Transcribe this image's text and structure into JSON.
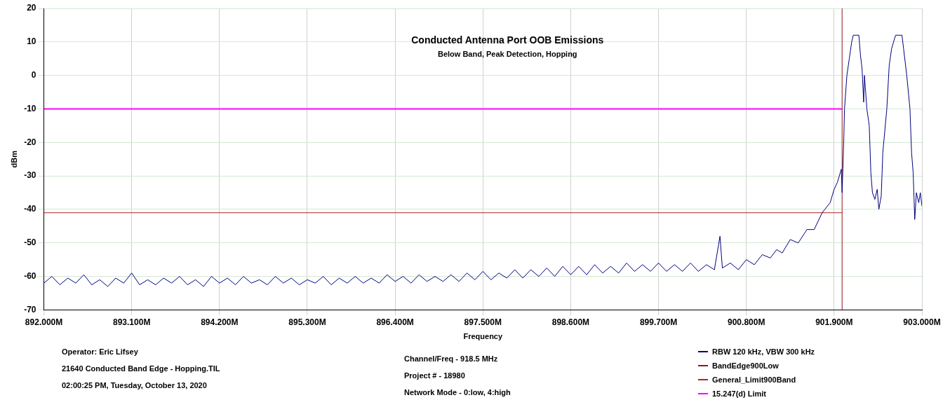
{
  "chart_data": {
    "type": "line",
    "title": "Conducted Antenna Port OOB Emissions",
    "subtitle": "Below Band, Peak Detection, Hopping",
    "xlabel": "Frequency",
    "ylabel": "dBm",
    "xlim": [
      892.0,
      903.0
    ],
    "xticks": [
      {
        "value": 892.0,
        "label": "892.000M"
      },
      {
        "value": 893.1,
        "label": "893.100M"
      },
      {
        "value": 894.2,
        "label": "894.200M"
      },
      {
        "value": 895.3,
        "label": "895.300M"
      },
      {
        "value": 896.4,
        "label": "896.400M"
      },
      {
        "value": 897.5,
        "label": "897.500M"
      },
      {
        "value": 898.6,
        "label": "898.600M"
      },
      {
        "value": 899.7,
        "label": "899.700M"
      },
      {
        "value": 900.8,
        "label": "900.800M"
      },
      {
        "value": 901.9,
        "label": "901.900M"
      },
      {
        "value": 903.0,
        "label": "903.000M"
      }
    ],
    "ylim": [
      -70,
      20
    ],
    "yticks": [
      -70,
      -60,
      -50,
      -40,
      -30,
      -20,
      -10,
      0,
      10,
      20
    ],
    "grid": true,
    "legend": "bottom right",
    "marker": "none",
    "line_style": "solid",
    "series": [
      {
        "name": "RBW 120 kHz, VBW 300 kHz",
        "color": "#000080",
        "x": [
          892.0,
          892.1,
          892.2,
          892.3,
          892.4,
          892.5,
          892.6,
          892.7,
          892.8,
          892.9,
          893.0,
          893.1,
          893.2,
          893.3,
          893.4,
          893.5,
          893.6,
          893.7,
          893.8,
          893.9,
          894.0,
          894.1,
          894.2,
          894.3,
          894.4,
          894.5,
          894.6,
          894.7,
          894.8,
          894.9,
          895.0,
          895.1,
          895.2,
          895.3,
          895.4,
          895.5,
          895.6,
          895.7,
          895.8,
          895.9,
          896.0,
          896.1,
          896.2,
          896.3,
          896.4,
          896.5,
          896.6,
          896.7,
          896.8,
          896.9,
          897.0,
          897.1,
          897.2,
          897.3,
          897.4,
          897.5,
          897.6,
          897.7,
          897.8,
          897.9,
          898.0,
          898.1,
          898.2,
          898.3,
          898.4,
          898.5,
          898.6,
          898.7,
          898.8,
          898.9,
          899.0,
          899.1,
          899.2,
          899.3,
          899.4,
          899.5,
          899.6,
          899.7,
          899.8,
          899.9,
          900.0,
          900.1,
          900.2,
          900.3,
          900.4,
          900.47,
          900.5,
          900.6,
          900.7,
          900.8,
          900.9,
          901.0,
          901.1,
          901.18,
          901.25,
          901.35,
          901.45,
          901.56,
          901.65,
          901.75,
          901.85,
          901.9,
          901.94,
          901.99,
          902.0,
          902.02,
          902.03,
          902.06,
          902.09,
          902.12,
          902.14,
          902.21,
          902.23,
          902.25,
          902.27,
          902.28,
          902.31,
          902.34,
          902.36,
          902.38,
          902.41,
          902.44,
          902.46,
          902.49,
          902.51,
          902.56,
          902.59,
          902.62,
          902.67,
          902.75,
          902.77,
          902.81,
          902.85,
          902.87,
          902.89,
          902.91,
          902.93,
          902.96,
          902.98,
          903.0
        ],
        "values": [
          -62,
          -60,
          -62.5,
          -60.5,
          -62,
          -59.5,
          -62.5,
          -61,
          -63,
          -60.5,
          -62,
          -59,
          -62.5,
          -61,
          -62.5,
          -60.5,
          -62,
          -60,
          -62.5,
          -61,
          -63,
          -60,
          -62,
          -60.5,
          -62.5,
          -60,
          -62,
          -61,
          -62.5,
          -60,
          -62,
          -60.5,
          -62.5,
          -61,
          -62,
          -60,
          -62.5,
          -60.5,
          -62,
          -60,
          -62,
          -60.5,
          -62,
          -59.5,
          -61.5,
          -60,
          -62,
          -59.5,
          -61.5,
          -60,
          -61.5,
          -59.5,
          -61.5,
          -59,
          -61,
          -58.5,
          -61,
          -59,
          -60.5,
          -58,
          -60.5,
          -58,
          -60,
          -57.5,
          -60,
          -57,
          -59.5,
          -57,
          -59.5,
          -56.5,
          -59,
          -57,
          -59,
          -56,
          -58.5,
          -56.5,
          -58.5,
          -56,
          -58.5,
          -56.5,
          -58.5,
          -56,
          -58.5,
          -56.5,
          -58,
          -48,
          -57.5,
          -56,
          -58,
          -55,
          -56.5,
          -53.5,
          -54.5,
          -52,
          -53,
          -49,
          -50,
          -46,
          -46,
          -41,
          -38,
          -34,
          -32,
          -28,
          -35,
          -20,
          -10,
          0,
          5,
          10,
          12,
          12,
          6,
          2,
          -8,
          0,
          -10,
          -15,
          -29,
          -35,
          -37,
          -34,
          -40,
          -36,
          -23,
          -10,
          3,
          8,
          12,
          12,
          8,
          0,
          -10,
          -23,
          -29,
          -43,
          -35,
          -38,
          -35,
          -39
        ]
      },
      {
        "name": "BandEdge900Low",
        "color": "#8b1a1a",
        "x": [
          902.0,
          902.0
        ],
        "values": [
          -70,
          20
        ]
      },
      {
        "name": "General_Limit900Band",
        "color": "#b22222",
        "x": [
          892.0,
          902.0
        ],
        "values": [
          -41,
          -41
        ]
      },
      {
        "name": "15.247(d) Limit",
        "color": "#ff00ff",
        "x": [
          892.0,
          902.0
        ],
        "values": [
          -10,
          -10
        ]
      }
    ],
    "annotations": [
      "Operator: Eric Lifsey",
      "21640 Conducted Band Edge - Hopping.TIL",
      "02:00:25 PM, Tuesday, October 13, 2020",
      "Channel/Freq - 918.5 MHz",
      "Project # - 18980",
      "Network Mode - 0:low, 4:high"
    ]
  }
}
